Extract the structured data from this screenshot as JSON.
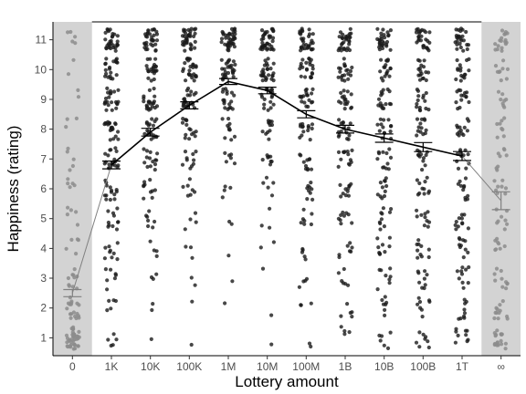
{
  "chart_data": {
    "type": "scatter",
    "subtype": "jittered strip plot with mean line and standard-error bars",
    "xlabel": "Lottery amount",
    "ylabel": "Happiness (rating)",
    "categories": [
      "0",
      "1K",
      "10K",
      "100K",
      "1M",
      "10M",
      "100M",
      "1B",
      "10B",
      "100B",
      "1T",
      "∞"
    ],
    "y_ticks": [
      1,
      2,
      3,
      4,
      5,
      6,
      7,
      8,
      9,
      10,
      11
    ],
    "ylim": [
      0.4,
      11.6
    ],
    "shaded_categories": [
      "0",
      "∞"
    ],
    "grid": false,
    "series": [
      {
        "values": [
          2.5,
          6.8,
          7.9,
          8.8,
          9.6,
          9.3,
          8.5,
          8.0,
          7.7,
          7.4,
          7.1,
          5.6
        ],
        "se": [
          0.12,
          0.13,
          0.13,
          0.12,
          0.1,
          0.11,
          0.12,
          0.13,
          0.14,
          0.15,
          0.15,
          0.3
        ]
      }
    ],
    "jitter_distribution": {
      "note": "relative weight of the plotted responses at each rating 1-11, per category",
      "0": [
        40,
        18,
        10,
        5,
        5,
        5,
        5,
        3,
        2,
        2,
        5
      ],
      "1K": [
        5,
        5,
        7,
        9,
        11,
        14,
        18,
        20,
        22,
        20,
        30
      ],
      "10K": [
        1,
        2,
        3,
        4,
        7,
        10,
        14,
        18,
        22,
        22,
        32
      ],
      "100K": [
        1,
        1,
        2,
        3,
        4,
        7,
        10,
        15,
        22,
        26,
        36
      ],
      "1M": [
        0,
        1,
        1,
        1,
        2,
        4,
        6,
        10,
        18,
        28,
        40
      ],
      "10M": [
        1,
        1,
        1,
        2,
        3,
        5,
        8,
        12,
        18,
        26,
        38
      ],
      "100M": [
        2,
        3,
        4,
        5,
        7,
        9,
        11,
        14,
        18,
        22,
        32
      ],
      "1B": [
        4,
        5,
        6,
        7,
        9,
        11,
        13,
        15,
        17,
        20,
        30
      ],
      "10B": [
        6,
        7,
        8,
        9,
        10,
        11,
        12,
        14,
        16,
        18,
        28
      ],
      "100B": [
        8,
        8,
        9,
        10,
        10,
        11,
        12,
        13,
        15,
        17,
        27
      ],
      "1T": [
        9,
        9,
        10,
        10,
        11,
        11,
        12,
        13,
        14,
        16,
        26
      ],
      "∞": [
        18,
        12,
        10,
        8,
        8,
        8,
        8,
        8,
        8,
        9,
        18
      ]
    },
    "colors": {
      "panel_shade": "#d3d3d3",
      "point_dark": "#1a1a1a",
      "point_light": "#8c8c8c",
      "mean_line_dark": "#000000",
      "mean_line_light": "#808080"
    }
  }
}
